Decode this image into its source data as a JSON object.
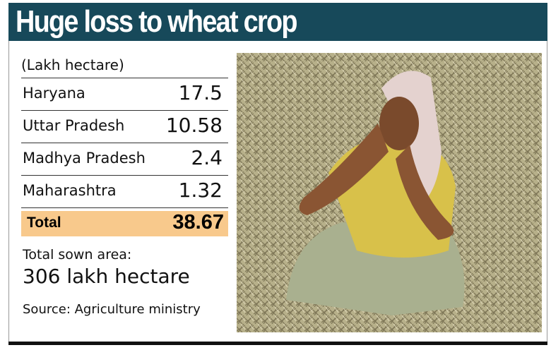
{
  "header": {
    "title": "Huge loss to wheat crop"
  },
  "table": {
    "unit": "(Lakh hectare)",
    "rows": [
      [
        "Haryana",
        17.5
      ],
      [
        "Uttar Pradesh",
        10.58
      ],
      [
        "Madhya Pradesh",
        2.4
      ],
      [
        "Maharashtra",
        1.32
      ]
    ],
    "total": [
      "Total",
      38.67
    ]
  },
  "note": {
    "label": "Total sown area:",
    "value": "306 lakh hectare"
  },
  "source": "Source: Agriculture ministry"
}
